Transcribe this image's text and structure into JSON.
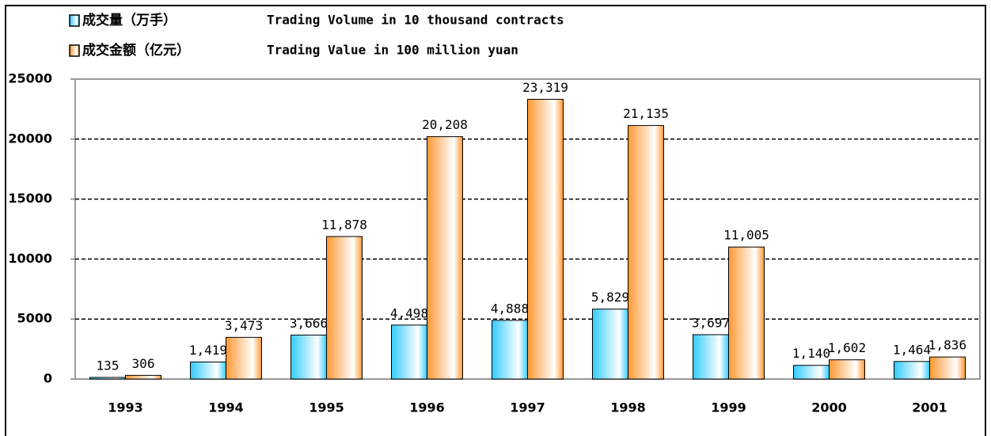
{
  "chart_data": {
    "type": "bar",
    "categories": [
      "1993",
      "1994",
      "1995",
      "1996",
      "1997",
      "1998",
      "1999",
      "2000",
      "2001"
    ],
    "series": [
      {
        "name": "成交量（万手）",
        "description": "Trading Volume in 10 thousand contracts",
        "color": "#33ccff",
        "values": [
          135,
          1419,
          3666,
          4498,
          4888,
          5829,
          3697,
          1140,
          1464
        ],
        "value_labels": [
          "135",
          "1,419",
          "3,666",
          "4,498",
          "4,888",
          "5,829",
          "3,697",
          "1,140",
          "1,464"
        ]
      },
      {
        "name": "成交金额（亿元）",
        "description": "Trading Value in 100 million yuan",
        "color": "#ff9933",
        "values": [
          306,
          3473,
          11878,
          20208,
          23319,
          21135,
          11005,
          1602,
          1836
        ],
        "value_labels": [
          "306",
          "3,473",
          "11,878",
          "20,208",
          "23,319",
          "21,135",
          "11,005",
          "1,602",
          "1,836"
        ]
      }
    ],
    "ylim": [
      0,
      25000
    ],
    "yticks": [
      0,
      5000,
      10000,
      15000,
      20000,
      25000
    ],
    "grid": true
  }
}
